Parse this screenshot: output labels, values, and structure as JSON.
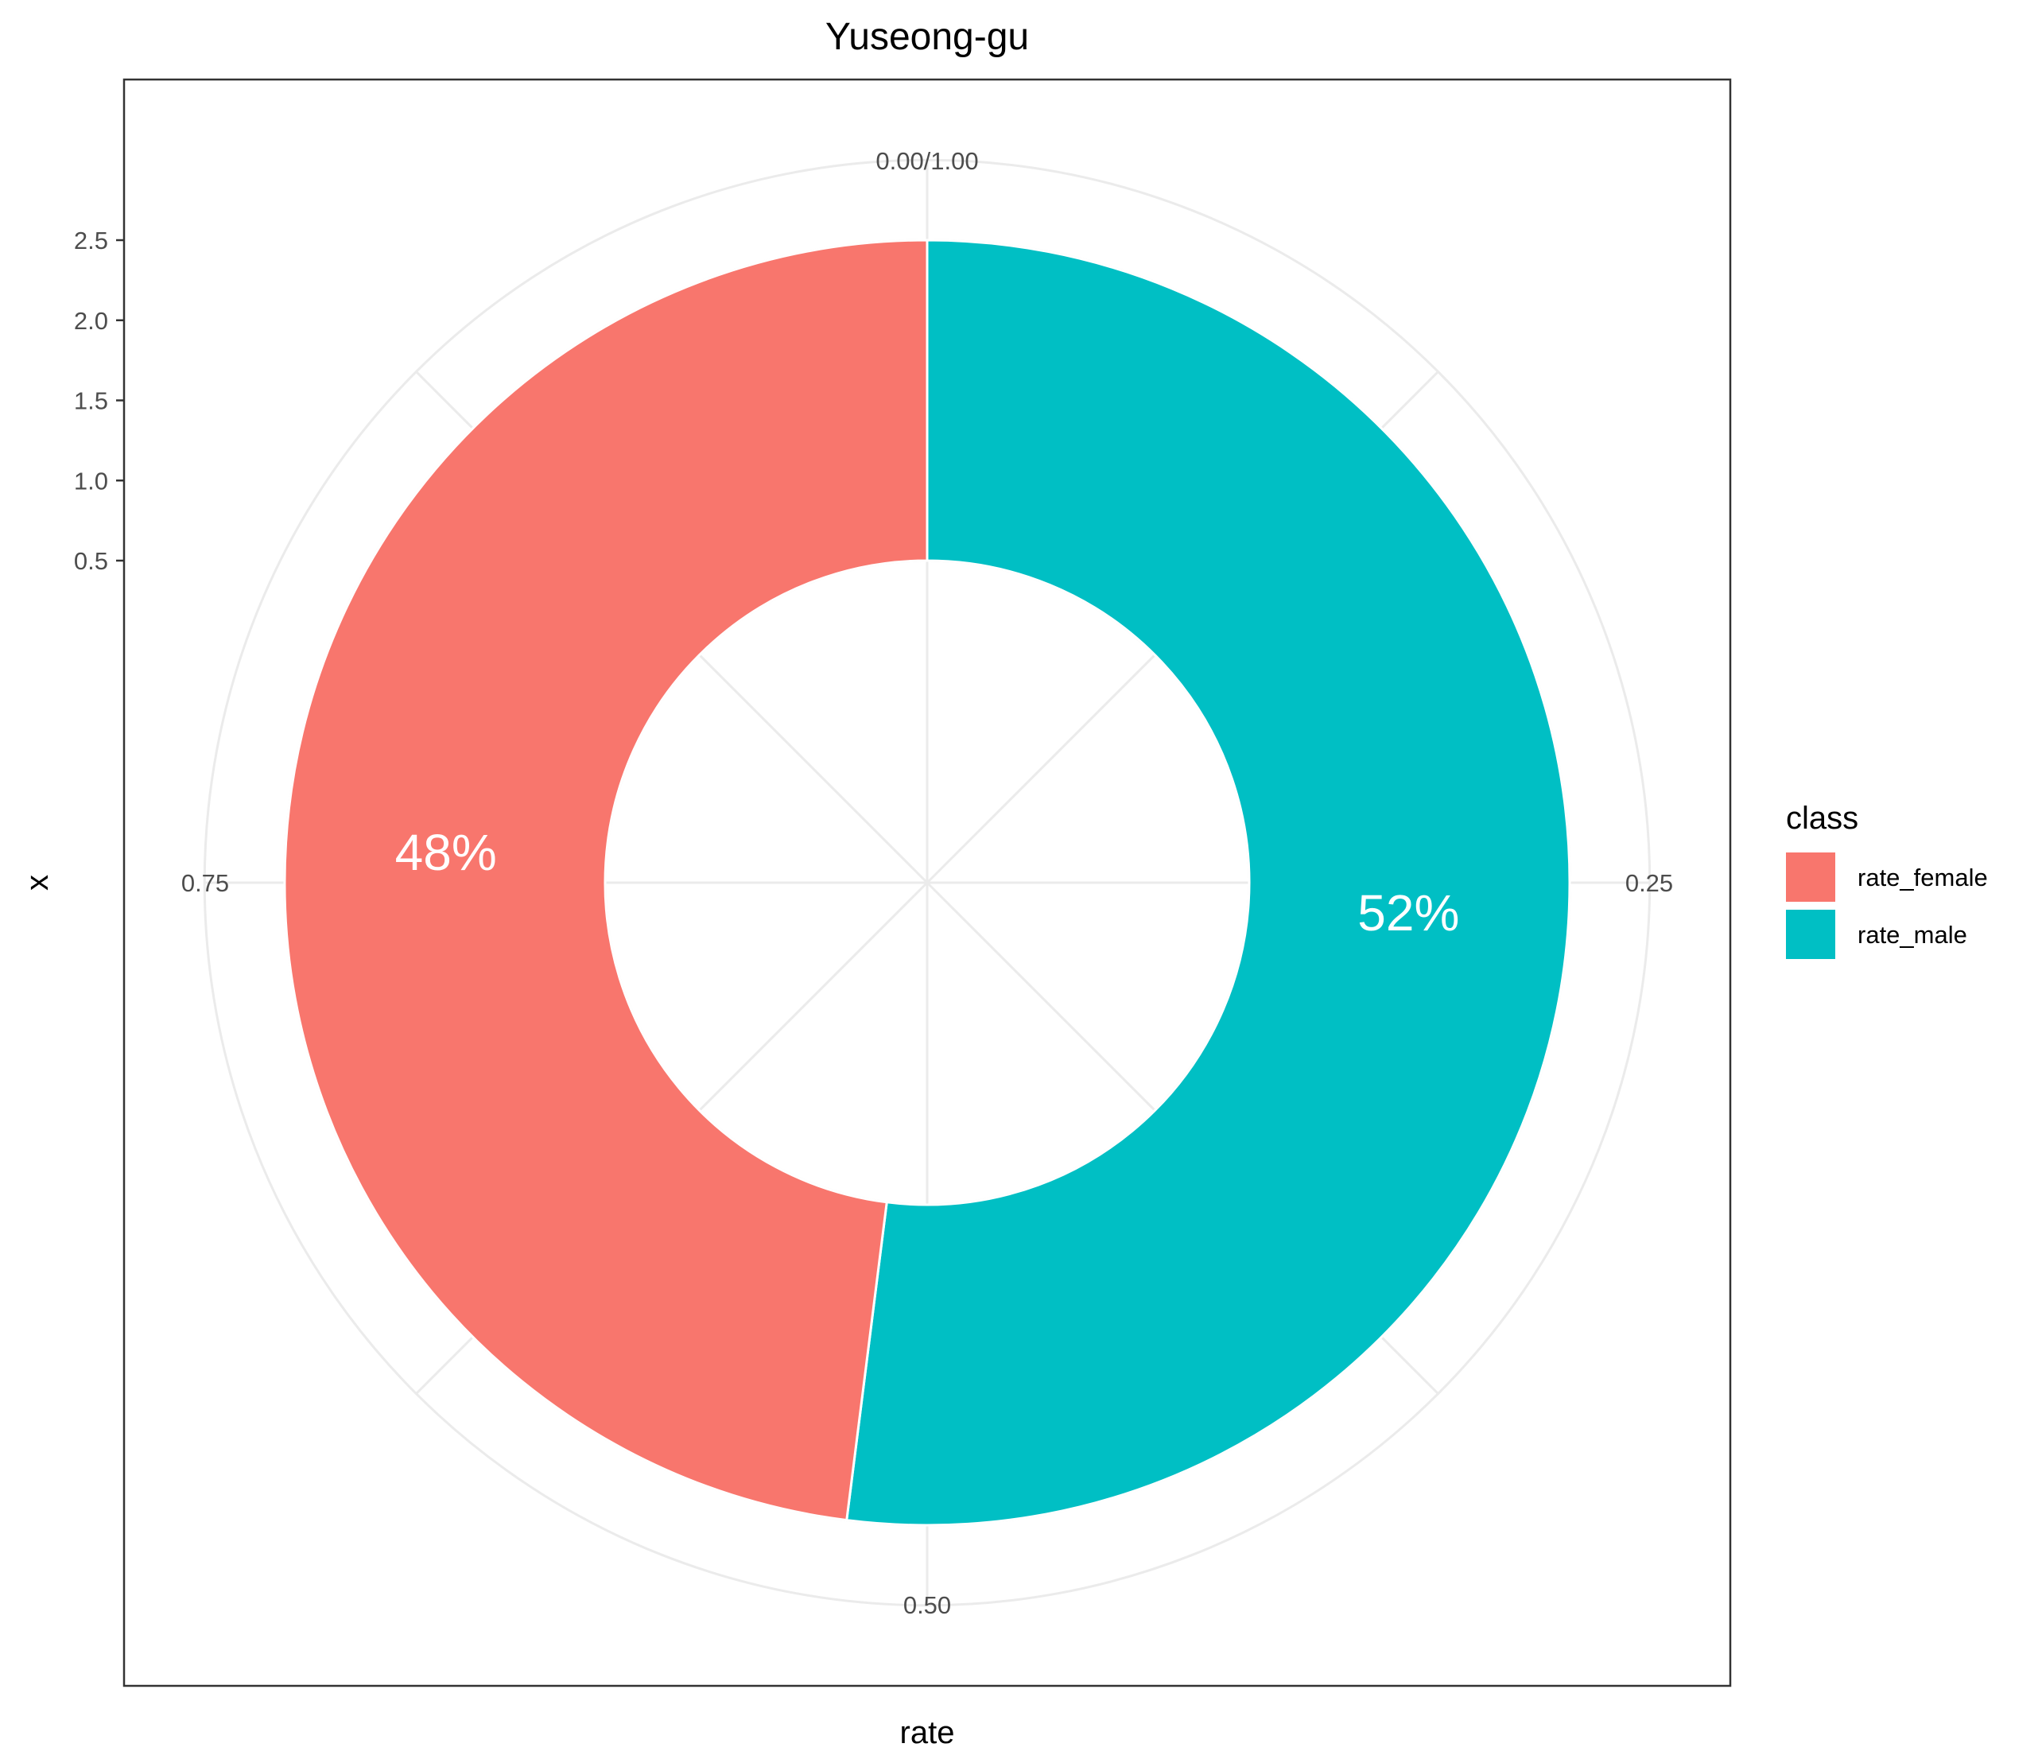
{
  "chart_data": {
    "type": "pie",
    "title": "Yuseong-gu",
    "xlabel": "rate",
    "ylabel": "x",
    "x_ticks": [
      "0.5",
      "1.0",
      "1.5",
      "2.0",
      "2.5"
    ],
    "theta_ticks": [
      "0.00/1.00",
      "0.25",
      "0.50",
      "0.75"
    ],
    "legend": {
      "title": "class",
      "position": "right"
    },
    "grid": true,
    "inner_hole": true,
    "slices": [
      {
        "class": "rate_male",
        "value": 0.52,
        "label": "52%",
        "color": "#00BFC4"
      },
      {
        "class": "rate_female",
        "value": 0.48,
        "label": "48%",
        "color": "#F8766D"
      }
    ]
  }
}
